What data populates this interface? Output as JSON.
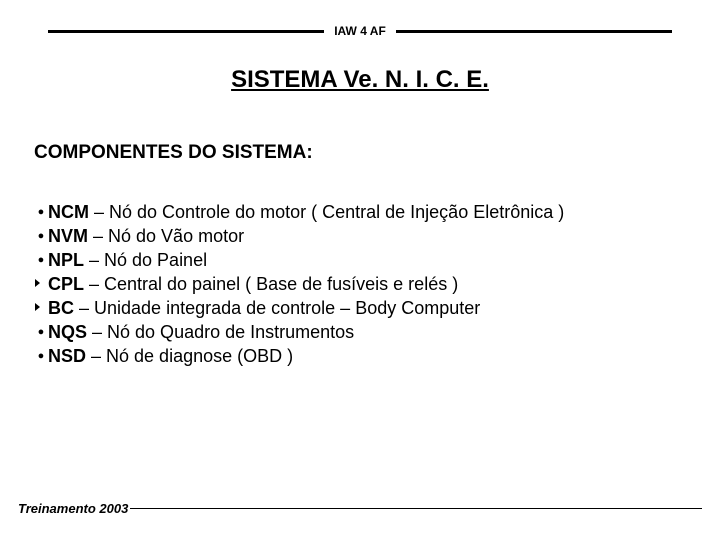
{
  "header_label": "IAW 4 AF",
  "title": "SISTEMA Ve. N. I. C. E.",
  "subheading": "COMPONENTES DO SISTEMA:",
  "items": [
    {
      "marker": "dot",
      "term": "NCM",
      "desc": " – Nó do Controle do motor ( Central de Injeção Eletrônica )"
    },
    {
      "marker": "dot",
      "term": "NVM",
      "desc": " – Nó do Vão motor"
    },
    {
      "marker": "dot",
      "term": "NPL",
      "desc": " – Nó do Painel"
    },
    {
      "marker": "chevron",
      "term": "CPL",
      "desc": " – Central do painel ( Base de fusíveis e relés )"
    },
    {
      "marker": "chevron",
      "term": "BC",
      "desc": " – Unidade integrada de controle – Body Computer"
    },
    {
      "marker": "dot",
      "term": "NQS",
      "desc": " – Nó do Quadro de Instrumentos"
    },
    {
      "marker": "dot",
      "term": "NSD",
      "desc": " – Nó de diagnose (OBD )"
    }
  ],
  "footer": "Treinamento 2003"
}
